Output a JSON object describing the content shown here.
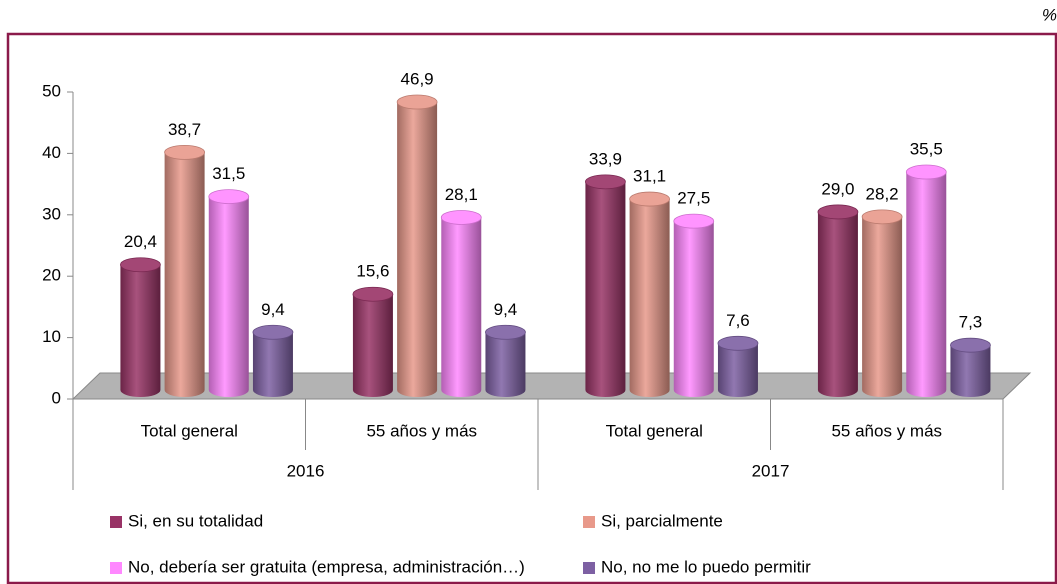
{
  "chart_data": {
    "type": "bar",
    "unit": "%",
    "categories": [
      "Total general",
      "55 años y más",
      "Total general",
      "55 años y más"
    ],
    "groups": [
      "2016",
      "2017"
    ],
    "series": [
      {
        "name": "Si, en su totalidad",
        "color": "#993366",
        "values": [
          20.4,
          15.6,
          33.9,
          29.0
        ],
        "value_labels": [
          "20,4",
          "15,6",
          "33,9",
          "29,0"
        ]
      },
      {
        "name": "Si, parcialmente",
        "color": "#e8998a",
        "values": [
          38.7,
          46.9,
          31.1,
          28.2
        ],
        "value_labels": [
          "38,7",
          "46,9",
          "31,1",
          "28,2"
        ]
      },
      {
        "name": "No, debería ser gratuita (empresa, administración…)",
        "color": "#ff88ff",
        "values": [
          31.5,
          28.1,
          27.5,
          35.5
        ],
        "value_labels": [
          "31,5",
          "28,1",
          "27,5",
          "35,5"
        ]
      },
      {
        "name": "No, no me lo puedo permitir",
        "color": "#7d60a3",
        "values": [
          9.4,
          9.4,
          7.6,
          7.3
        ],
        "value_labels": [
          "9,4",
          "9,4",
          "7,6",
          "7,3"
        ]
      }
    ],
    "ylim": [
      0,
      50
    ],
    "yticks": [
      0,
      10,
      20,
      30,
      40,
      50
    ],
    "legend": "bottom"
  }
}
